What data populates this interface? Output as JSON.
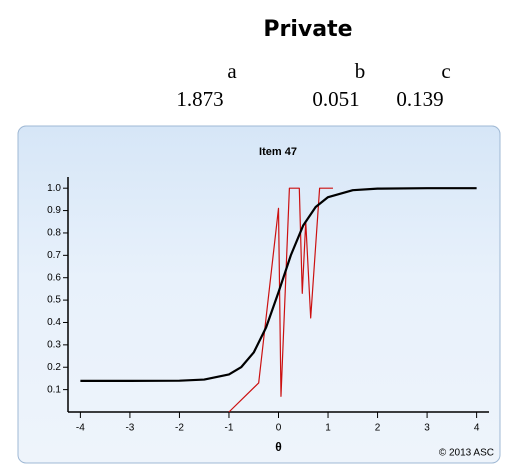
{
  "header": {
    "title": "Private"
  },
  "parameters": {
    "labels": [
      "a",
      "b",
      "c"
    ],
    "values": [
      1.873,
      0.051,
      0.139
    ]
  },
  "chart_data": {
    "type": "line",
    "title": "Item 47",
    "x_label": "θ",
    "credit": "© 2013 ASC",
    "xlim": [
      -4.25,
      4.25
    ],
    "ylim": [
      0,
      1.05
    ],
    "xticks": [
      -4,
      -3,
      -2,
      -1,
      0,
      1,
      2,
      3,
      4
    ],
    "yticks": [
      0.1,
      0.2,
      0.3,
      0.4,
      0.5,
      0.6,
      0.7,
      0.8,
      0.9,
      {
        "value": 1.0,
        "label": "1.0"
      }
    ],
    "series": [
      {
        "color": "#cc1111",
        "x": [
          -1,
          -0.4,
          0,
          0.05,
          0.22,
          0.42,
          0.48,
          0.55,
          0.65,
          0.83,
          1.1
        ],
        "values": [
          0,
          0.13,
          0.91,
          0.07,
          1.0,
          1.0,
          0.53,
          0.85,
          0.42,
          1.0,
          1.0
        ]
      },
      {
        "color": "#000000",
        "x": [
          -4,
          -3,
          -2,
          -1.5,
          -1,
          -0.75,
          -0.5,
          -0.25,
          0,
          0.25,
          0.5,
          0.75,
          1,
          1.5,
          2,
          3,
          4
        ],
        "values": [
          0.139,
          0.139,
          0.14,
          0.145,
          0.168,
          0.201,
          0.266,
          0.378,
          0.535,
          0.701,
          0.834,
          0.916,
          0.96,
          0.991,
          0.998,
          1.0,
          1.0
        ]
      }
    ]
  }
}
